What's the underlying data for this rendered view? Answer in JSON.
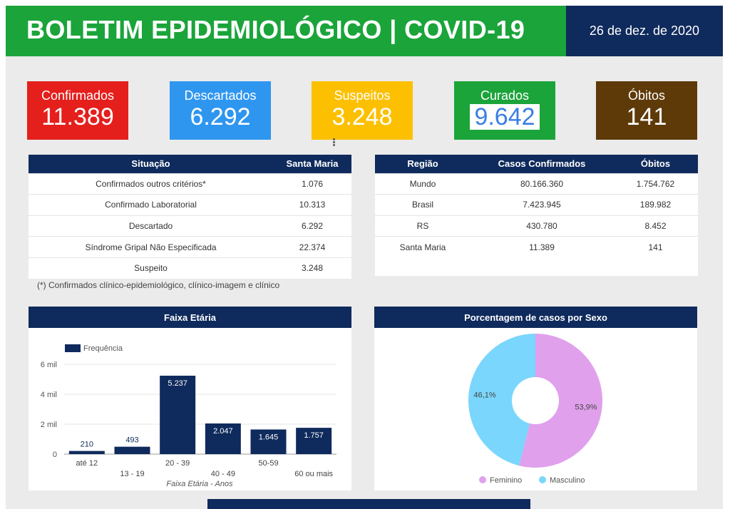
{
  "header": {
    "title": "BOLETIM EPIDEMIOLÓGICO | COVID-19",
    "date": "26 de dez. de 2020"
  },
  "kpis": [
    {
      "label": "Confirmados",
      "value": "11.389",
      "color": "#e41f1c"
    },
    {
      "label": "Descartados",
      "value": "6.292",
      "color": "#2f96f0"
    },
    {
      "label": "Suspeitos",
      "value": "3.248",
      "color": "#fcc000"
    },
    {
      "label": "Curados",
      "value": "9.642",
      "color": "#1ba43a"
    },
    {
      "label": "Óbitos",
      "value": "141",
      "color": "#5e3a09"
    }
  ],
  "situacao_table": {
    "headers": [
      "Situação",
      "Santa Maria"
    ],
    "rows": [
      [
        "Confirmados outros critérios*",
        "1.076"
      ],
      [
        "Confirmado Laboratorial",
        "10.313"
      ],
      [
        "Descartado",
        "6.292"
      ],
      [
        "Síndrome Gripal Não Especificada",
        "22.374"
      ],
      [
        "Suspeito",
        "3.248"
      ]
    ],
    "footnote": "(*) Confirmados clínico-epidemiológico, clínico-imagem e clínico"
  },
  "regiao_table": {
    "headers": [
      "Região",
      "Casos Confirmados",
      "Óbitos"
    ],
    "rows": [
      [
        "Mundo",
        "80.166.360",
        "1.754.762"
      ],
      [
        "Brasil",
        "7.423.945",
        "189.982"
      ],
      [
        "RS",
        "430.780",
        "8.452"
      ],
      [
        "Santa Maria",
        "11.389",
        "141"
      ]
    ]
  },
  "age_panel_title": "Faixa Etária",
  "sex_panel_title": "Porcentagem de casos por Sexo",
  "chart_data": [
    {
      "type": "bar",
      "title": "Faixa Etária",
      "categories": [
        "até 12",
        "13 - 19",
        "20 - 39",
        "40 - 49",
        "50-59",
        "60 ou mais"
      ],
      "series": [
        {
          "name": "Frequência",
          "values": [
            210,
            493,
            5237,
            2047,
            1645,
            1757
          ]
        }
      ],
      "data_labels": [
        "210",
        "493",
        "5.237",
        "2.047",
        "1.645",
        "1.757"
      ],
      "xlabel": "Faixa Etária - Anos",
      "ylabel": "",
      "yticks": [
        "0",
        "2 mil",
        "4 mil",
        "6 mil"
      ],
      "ylim": [
        0,
        6500
      ],
      "grid": true,
      "legend": "top-left",
      "color": "#0f2a5c"
    },
    {
      "type": "pie",
      "title": "Porcentagem de casos por Sexo",
      "categories": [
        "Feminino",
        "Masculino"
      ],
      "values": [
        53.9,
        46.1
      ],
      "data_labels": [
        "53,9%",
        "46,1%"
      ],
      "colors": [
        "#e0a0ec",
        "#7ad6fc"
      ],
      "donut": true,
      "legend": "bottom"
    }
  ]
}
